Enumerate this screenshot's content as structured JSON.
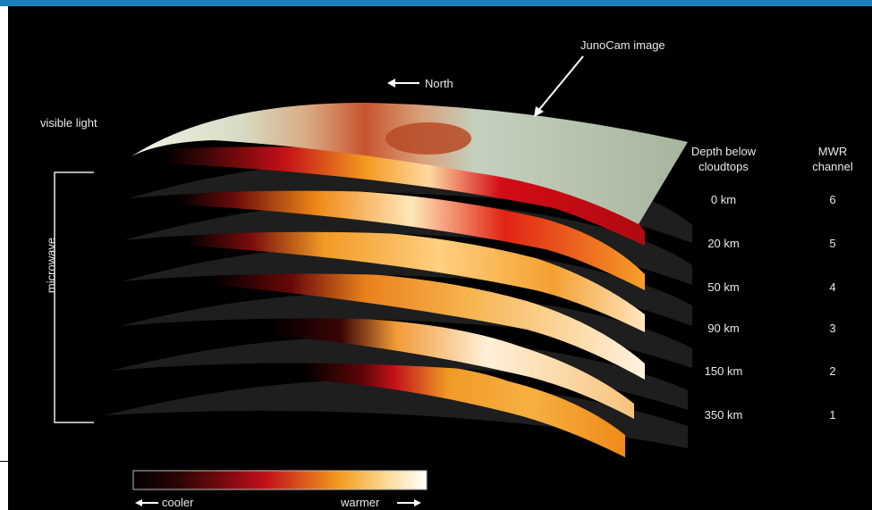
{
  "labels": {
    "junocam": "JunoCam image",
    "north": "North",
    "visible_light": "visible light",
    "microwave": "microwave",
    "depth_header_1": "Depth below",
    "depth_header_2": "cloudtops",
    "mwr_header_1": "MWR",
    "mwr_header_2": "channel",
    "cooler": "cooler",
    "warmer": "warmer"
  },
  "layers": [
    {
      "depth": "0 km",
      "channel": "6"
    },
    {
      "depth": "20 km",
      "channel": "5"
    },
    {
      "depth": "50 km",
      "channel": "4"
    },
    {
      "depth": "90 km",
      "channel": "3"
    },
    {
      "depth": "150 km",
      "channel": "2"
    },
    {
      "depth": "350 km",
      "channel": "1"
    }
  ],
  "colors": {
    "topbar": "#1d7fb8",
    "text": "#e9e9e9",
    "scale_cool": "#000000",
    "scale_mid": "#c0101a",
    "scale_warm": "#f39a1e",
    "scale_hot": "#ffffff"
  }
}
